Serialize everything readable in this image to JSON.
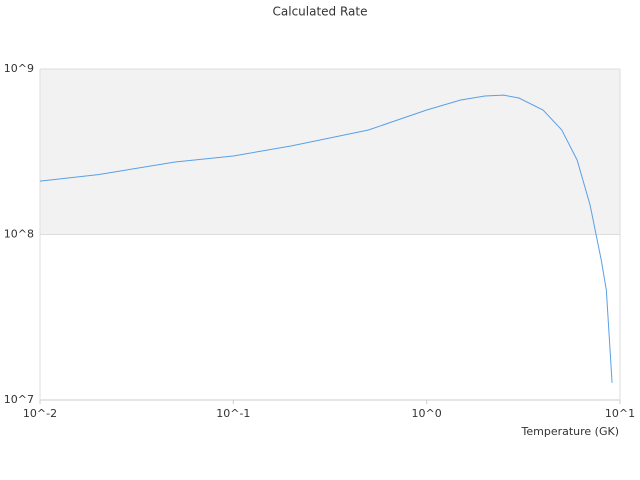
{
  "chart_data": {
    "type": "line",
    "title": "Calculated Rate",
    "x_label": "Temperature (GK)",
    "xscale": "log",
    "yscale": "log",
    "xlim": [
      0.01,
      10
    ],
    "ylim": [
      10000000,
      1000000000
    ],
    "xticks": [
      {
        "value": 0.01,
        "label": "10^-2"
      },
      {
        "value": 0.1,
        "label": "10^-1"
      },
      {
        "value": 1,
        "label": "10^0"
      },
      {
        "value": 10,
        "label": "10^1"
      }
    ],
    "yticks": [
      {
        "value": 10000000,
        "label": "10^7"
      },
      {
        "value": 100000000,
        "label": "10^8"
      },
      {
        "value": 1000000000,
        "label": "10^9"
      }
    ],
    "band_color": "#f2f2f2",
    "x": [
      0.01,
      0.02,
      0.05,
      0.1,
      0.2,
      0.5,
      1,
      1.5,
      2,
      2.5,
      3,
      4,
      5,
      6,
      7,
      8,
      8.5,
      9.1
    ],
    "series": [
      {
        "color": "#5aa0e6",
        "values": [
          210000000,
          230000000,
          274000000,
          298000000,
          343000000,
          428000000,
          565000000,
          650000000,
          687000000,
          695000000,
          668000000,
          565000000,
          428000000,
          282000000,
          151000000,
          70000000,
          46000000,
          12700000
        ]
      }
    ]
  }
}
